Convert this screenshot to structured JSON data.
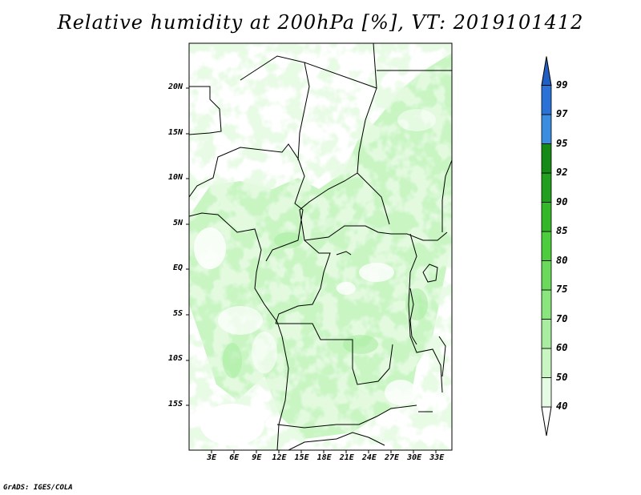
{
  "title": "Relative humidity at 200hPa [%], VT: 2019101412",
  "footer": "GrADS: IGES/COLA",
  "map": {
    "variable": "Relative humidity",
    "level": "200hPa",
    "units": "%",
    "valid_time": "2019101412",
    "lon_range_deg": [
      0,
      35
    ],
    "lat_range_deg": [
      -20,
      25
    ],
    "lat_ticks": [
      {
        "label": "20N",
        "value": 20
      },
      {
        "label": "15N",
        "value": 15
      },
      {
        "label": "10N",
        "value": 10
      },
      {
        "label": "5N",
        "value": 5
      },
      {
        "label": "EQ",
        "value": 0
      },
      {
        "label": "5S",
        "value": -5
      },
      {
        "label": "10S",
        "value": -10
      },
      {
        "label": "15S",
        "value": -15
      }
    ],
    "lon_ticks": [
      {
        "label": "3E",
        "value": 3
      },
      {
        "label": "6E",
        "value": 6
      },
      {
        "label": "9E",
        "value": 9
      },
      {
        "label": "12E",
        "value": 12
      },
      {
        "label": "15E",
        "value": 15
      },
      {
        "label": "18E",
        "value": 18
      },
      {
        "label": "21E",
        "value": 21
      },
      {
        "label": "24E",
        "value": 24
      },
      {
        "label": "27E",
        "value": 27
      },
      {
        "label": "30E",
        "value": 30
      },
      {
        "label": "33E",
        "value": 33
      }
    ]
  },
  "colorbar": {
    "levels": [
      "40",
      "50",
      "60",
      "70",
      "75",
      "80",
      "85",
      "90",
      "92",
      "95",
      "97",
      "99"
    ],
    "colors": [
      "#e6fbe4",
      "#c8f5c2",
      "#a8eda0",
      "#8ae57e",
      "#6ad95c",
      "#4ccd3e",
      "#34b82a",
      "#229f1e",
      "#168a16",
      "#3b8de0",
      "#2a72d6",
      "#1f5fc4"
    ]
  }
}
